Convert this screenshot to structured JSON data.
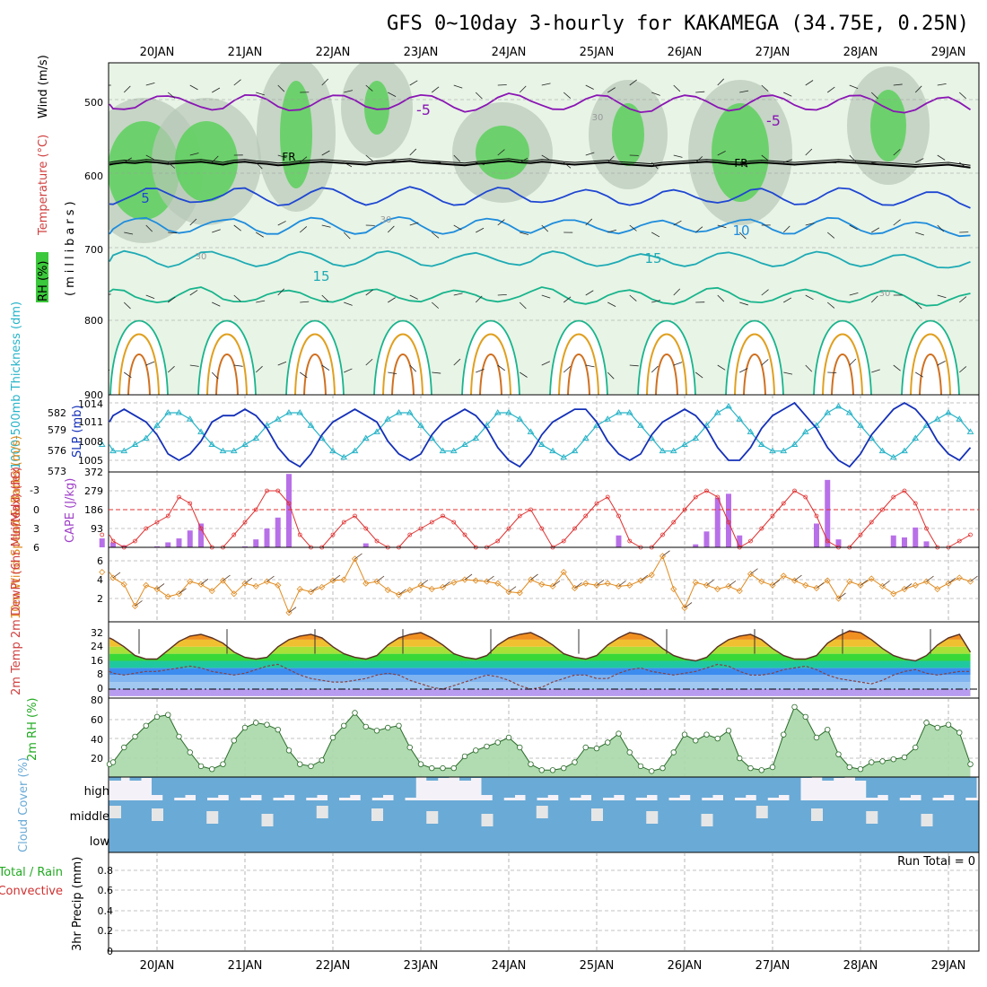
{
  "title": "GFS 0~10day 3-hourly for KAKAMEGA (34.75E, 0.25N)",
  "dates": [
    "20JAN",
    "21JAN",
    "22JAN",
    "23JAN",
    "24JAN",
    "25JAN",
    "26JAN",
    "27JAN",
    "28JAN",
    "29JAN"
  ],
  "colors": {
    "green": "#3cc83c",
    "purple": "#a040c8",
    "orange": "#e08a1e",
    "red": "#d03030",
    "navy": "#1430b8",
    "cyan": "#28b4c8",
    "rh": "#22aa22",
    "cloud": "#6aaad6"
  },
  "chart_data": [
    {
      "type": "heatmap",
      "panel": "upper-air",
      "ylabel_parts": [
        "RH (%)",
        "Temperature (°C)",
        "Wind (m/s)"
      ],
      "ylabel_unit": "(millibars)",
      "yticks": [
        500,
        600,
        700,
        800,
        900
      ],
      "ylim": [
        900,
        450
      ],
      "contour_labels": [
        "-5",
        "-5",
        "FR",
        "FR",
        "5",
        "10",
        "15",
        "15",
        "30",
        "30",
        "30",
        "30"
      ],
      "freezing_level_mb": [
        588,
        587,
        585,
        586,
        584,
        585,
        587,
        586,
        585,
        584,
        586,
        588,
        585,
        584,
        586,
        587,
        589,
        588,
        586,
        585,
        584,
        585,
        586,
        587,
        588,
        586,
        585,
        584,
        583,
        585,
        586,
        587,
        588,
        589,
        587,
        586,
        584,
        583,
        585,
        586,
        584,
        585,
        587,
        588,
        587,
        586,
        585,
        587,
        588,
        589,
        590,
        588,
        587,
        586,
        585,
        584,
        585,
        587,
        588,
        586,
        585,
        586,
        587,
        588,
        587,
        586,
        585,
        584,
        585,
        586,
        587,
        588,
        589,
        590,
        591,
        590,
        589,
        588,
        590,
        592
      ]
    },
    {
      "type": "line",
      "panel": "thickness-slp",
      "ylabel_left": "1000-500mb Thickness (dm)",
      "ylabel_right": "SLP (mb)",
      "yticks_left": [
        573,
        576,
        579,
        582
      ],
      "yticks_right": [
        1005,
        1008,
        1011,
        1014
      ],
      "series": [
        {
          "name": "SLP",
          "values": [
            1011,
            1012,
            1013,
            1012,
            1011,
            1009,
            1006,
            1005,
            1006,
            1008,
            1011,
            1012,
            1012,
            1013,
            1012,
            1010,
            1007,
            1005,
            1004,
            1006,
            1009,
            1011,
            1012,
            1013,
            1012,
            1011,
            1008,
            1006,
            1005,
            1006,
            1009,
            1011,
            1012,
            1013,
            1012,
            1010,
            1007,
            1005,
            1004,
            1006,
            1009,
            1011,
            1012,
            1013,
            1013,
            1011,
            1008,
            1006,
            1005,
            1006,
            1009,
            1011,
            1012,
            1013,
            1012,
            1010,
            1007,
            1005,
            1005,
            1007,
            1010,
            1012,
            1013,
            1014,
            1012,
            1010,
            1007,
            1005,
            1004,
            1006,
            1009,
            1011,
            1013,
            1014,
            1013,
            1011,
            1008,
            1006,
            1005,
            1007
          ]
        },
        {
          "name": "Thickness",
          "values": [
            577,
            576,
            576,
            577,
            578,
            580,
            582,
            582,
            581,
            579,
            577,
            576,
            576,
            577,
            578,
            580,
            581,
            582,
            582,
            580,
            578,
            576,
            575,
            576,
            578,
            579,
            581,
            582,
            582,
            580,
            578,
            576,
            576,
            577,
            578,
            580,
            582,
            582,
            581,
            579,
            577,
            576,
            575,
            576,
            578,
            580,
            581,
            582,
            582,
            580,
            578,
            576,
            576,
            577,
            578,
            580,
            582,
            583,
            581,
            579,
            577,
            576,
            576,
            577,
            579,
            580,
            582,
            583,
            582,
            580,
            578,
            576,
            575,
            576,
            578,
            580,
            581,
            582,
            581,
            579
          ]
        }
      ]
    },
    {
      "type": "bar",
      "panel": "li-cape",
      "ylabel_left": "Lifted Index",
      "ylabel_right": "CAPE (J/kg)",
      "yticks_left": [
        "-3",
        "0",
        "3",
        "6"
      ],
      "yticks_right": [
        93,
        186,
        279,
        372
      ],
      "series": [
        {
          "name": "CAPE",
          "values": [
            45,
            25,
            10,
            0,
            0,
            5,
            25,
            45,
            85,
            120,
            0,
            0,
            0,
            5,
            40,
            95,
            150,
            370,
            0,
            0,
            0,
            0,
            0,
            0,
            20,
            0,
            0,
            0,
            0,
            0,
            0,
            0,
            0,
            0,
            0,
            0,
            0,
            0,
            0,
            0,
            0,
            0,
            0,
            0,
            0,
            0,
            0,
            60,
            0,
            0,
            0,
            0,
            0,
            0,
            15,
            80,
            250,
            270,
            60,
            0,
            0,
            0,
            0,
            0,
            0,
            120,
            340,
            40,
            0,
            0,
            0,
            0,
            60,
            50,
            100,
            30,
            0,
            0,
            0,
            0
          ]
        },
        {
          "name": "Lifted Index",
          "values": [
            4,
            5,
            6,
            5,
            3,
            2,
            1,
            -2,
            -1,
            3,
            6,
            7,
            4,
            2,
            0,
            -3,
            -3,
            -1,
            4,
            7,
            6,
            4,
            2,
            1,
            3,
            5,
            7,
            6,
            4,
            3,
            2,
            1,
            2,
            4,
            6,
            7,
            5,
            3,
            1,
            0,
            3,
            6,
            5,
            3,
            1,
            -1,
            -2,
            1,
            5,
            7,
            6,
            4,
            2,
            0,
            -2,
            -3,
            -2,
            2,
            6,
            5,
            3,
            1,
            -1,
            -3,
            -2,
            1,
            5,
            7,
            6,
            4,
            2,
            0,
            -2,
            -3,
            -1,
            3,
            6,
            7,
            5,
            4
          ]
        }
      ]
    },
    {
      "type": "line",
      "panel": "wind10m",
      "ylabel": "10m Wind Speed & Barbs (m/s)",
      "yticks": [
        2,
        4,
        6
      ],
      "ylim": [
        0,
        7
      ],
      "values": [
        4.8,
        4.2,
        3.5,
        1.2,
        3.4,
        3.0,
        2.2,
        2.5,
        3.8,
        3.5,
        2.8,
        3.9,
        2.5,
        3.6,
        3.3,
        3.8,
        3.4,
        0.5,
        3.0,
        2.7,
        3.2,
        3.9,
        4.0,
        6.2,
        3.6,
        3.8,
        2.9,
        2.4,
        2.9,
        3.4,
        3.0,
        3.2,
        3.7,
        4.0,
        3.9,
        3.8,
        3.6,
        2.7,
        2.6,
        4.0,
        3.5,
        3.3,
        4.8,
        3.1,
        3.6,
        3.4,
        3.6,
        3.3,
        3.4,
        3.9,
        4.5,
        6.5,
        3.0,
        1.0,
        3.7,
        3.4,
        3.0,
        3.3,
        2.8,
        4.6,
        3.8,
        3.4,
        4.4,
        3.9,
        3.4,
        3.1,
        3.9,
        2.0,
        3.8,
        3.4,
        4.1,
        3.3,
        2.5,
        3.0,
        3.4,
        3.8,
        3.0,
        3.6,
        4.2,
        3.8
      ]
    },
    {
      "type": "area",
      "panel": "temp-dewpt",
      "ylabel": "2m Temp 2m DewPt (6hr Min/Max) (°C)",
      "yticks": [
        0,
        8,
        16,
        24,
        32
      ],
      "ylim": [
        -4,
        38
      ],
      "series": [
        {
          "name": "2m Temp",
          "values": [
            29,
            28,
            24,
            19,
            17,
            17,
            22,
            27,
            30,
            31,
            29,
            26,
            21,
            18,
            17,
            18,
            24,
            28,
            30,
            31,
            29,
            24,
            20,
            18,
            17,
            19,
            25,
            29,
            31,
            32,
            29,
            25,
            20,
            18,
            17,
            19,
            25,
            29,
            31,
            32,
            29,
            25,
            20,
            18,
            17,
            19,
            25,
            29,
            32,
            31,
            28,
            23,
            19,
            17,
            16,
            18,
            24,
            28,
            30,
            31,
            28,
            23,
            19,
            17,
            17,
            19,
            26,
            30,
            33,
            32,
            28,
            23,
            19,
            17,
            16,
            19,
            25,
            29,
            31,
            21
          ]
        },
        {
          "name": "2m DewPt",
          "values": [
            10,
            9,
            8,
            9,
            10,
            10,
            11,
            12,
            13,
            12,
            10,
            9,
            8,
            9,
            11,
            13,
            14,
            11,
            8,
            6,
            5,
            4,
            4,
            5,
            6,
            8,
            9,
            8,
            5,
            3,
            1,
            0,
            2,
            4,
            6,
            8,
            7,
            5,
            2,
            0,
            1,
            4,
            6,
            8,
            8,
            6,
            6,
            9,
            11,
            12,
            10,
            9,
            8,
            9,
            10,
            12,
            14,
            13,
            10,
            8,
            8,
            9,
            11,
            12,
            13,
            11,
            8,
            6,
            5,
            4,
            3,
            5,
            8,
            10,
            11,
            9,
            8,
            9,
            10,
            10
          ]
        }
      ]
    },
    {
      "type": "area",
      "panel": "rh2m",
      "ylabel": "2m RH (%)",
      "yticks": [
        20,
        40,
        60,
        80
      ],
      "ylim": [
        5,
        85
      ],
      "values": [
        18,
        20,
        35,
        46,
        57,
        66,
        68,
        46,
        30,
        16,
        13,
        18,
        42,
        55,
        60,
        58,
        53,
        32,
        18,
        16,
        22,
        45,
        57,
        70,
        56,
        52,
        55,
        57,
        35,
        18,
        14,
        14,
        14,
        26,
        32,
        36,
        40,
        45,
        35,
        18,
        12,
        12,
        14,
        20,
        35,
        34,
        40,
        49,
        30,
        16,
        11,
        14,
        30,
        48,
        42,
        48,
        44,
        52,
        24,
        14,
        12,
        15,
        48,
        76,
        66,
        45,
        53,
        28,
        15,
        13,
        20,
        21,
        23,
        25,
        35,
        60,
        55,
        58,
        50,
        18
      ]
    },
    {
      "type": "heatmap",
      "panel": "cloud",
      "ylabel": "Cloud Cover (%)",
      "rows": [
        "high",
        "middle",
        "low"
      ]
    },
    {
      "type": "bar",
      "panel": "precip",
      "ylabel_left": "Total / Rain",
      "ylabel_left2": "Convective",
      "ylabel": "3hr Precip (mm)",
      "yticks": [
        "0",
        "0.2",
        "0.4",
        "0.6",
        "0.8"
      ],
      "ylim": [
        0,
        0.96
      ],
      "run_total": "Run Total = 0",
      "values": []
    }
  ]
}
